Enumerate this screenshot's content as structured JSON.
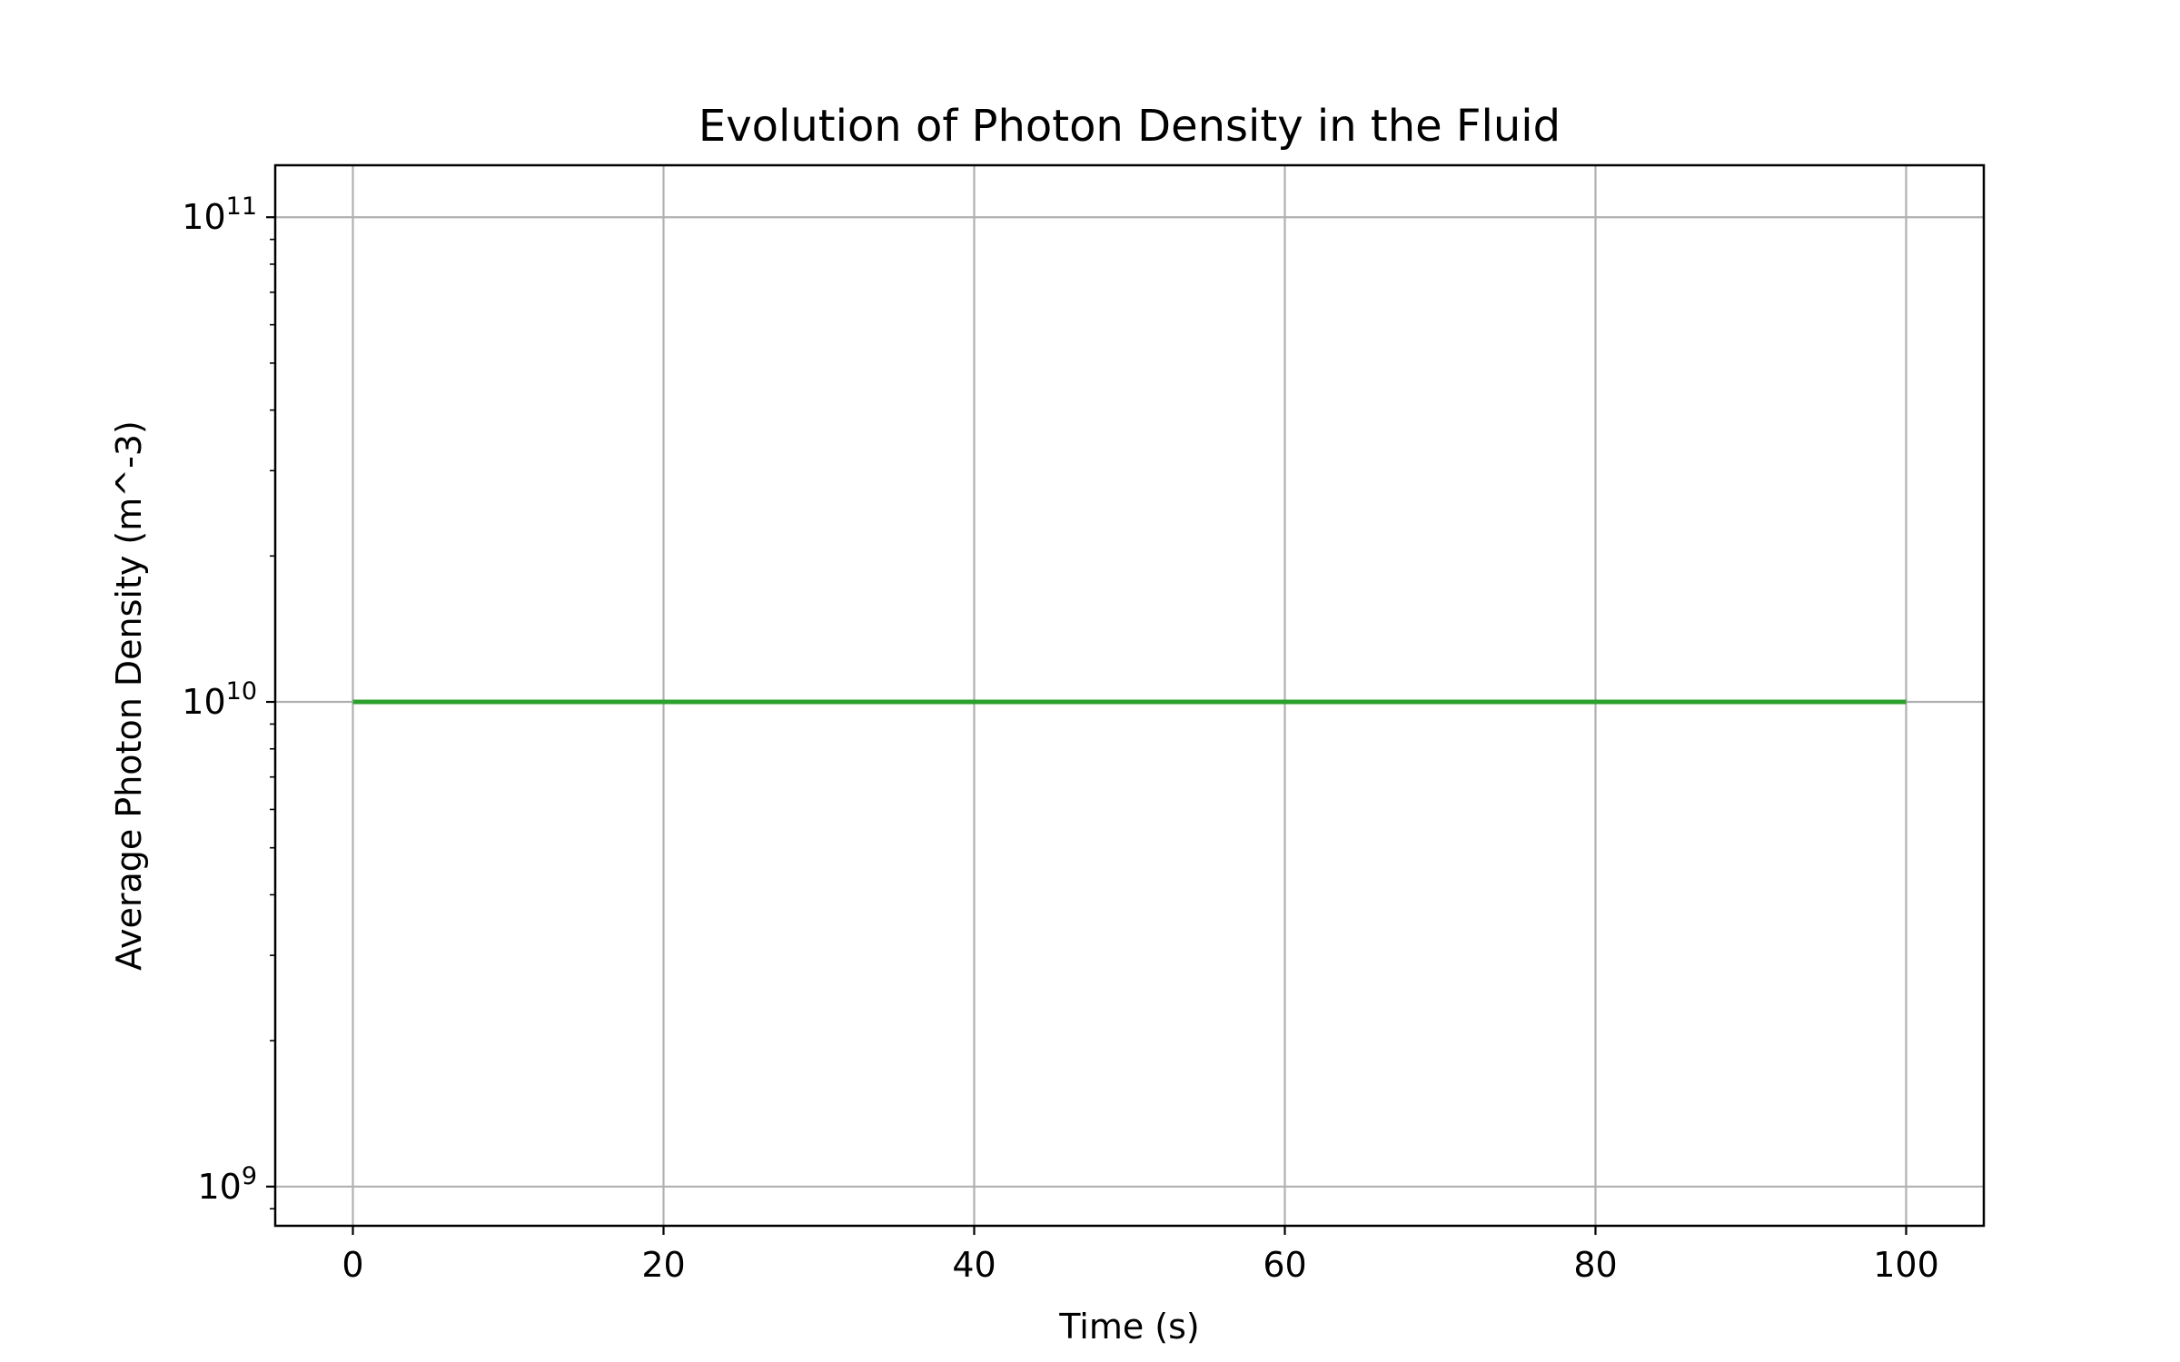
{
  "chart_data": {
    "type": "line",
    "title": "Evolution of Photon Density in the Fluid",
    "xlabel": "Time (s)",
    "ylabel": "Average Photon Density (m^-3)",
    "xlim": [
      -5,
      105
    ],
    "ylim": [
      830000000,
      128000000000
    ],
    "yscale": "log",
    "grid": true,
    "x_ticks": [
      0,
      20,
      40,
      60,
      80,
      100
    ],
    "x_tick_labels": [
      "0",
      "20",
      "40",
      "60",
      "80",
      "100"
    ],
    "y_ticks": [
      1000000000,
      10000000000,
      100000000000
    ],
    "y_tick_labels": [
      {
        "base": "10",
        "exp": "9"
      },
      {
        "base": "10",
        "exp": "10"
      },
      {
        "base": "10",
        "exp": "11"
      }
    ],
    "series": [
      {
        "color": "#2ca02c",
        "x": [
          0,
          10,
          20,
          30,
          40,
          50,
          60,
          70,
          80,
          90,
          100
        ],
        "y": [
          10000000000,
          10000000000,
          10000000000,
          10000000000,
          10000000000,
          10000000000,
          10000000000,
          10000000000,
          10000000000,
          10000000000,
          10000000000
        ]
      }
    ]
  }
}
